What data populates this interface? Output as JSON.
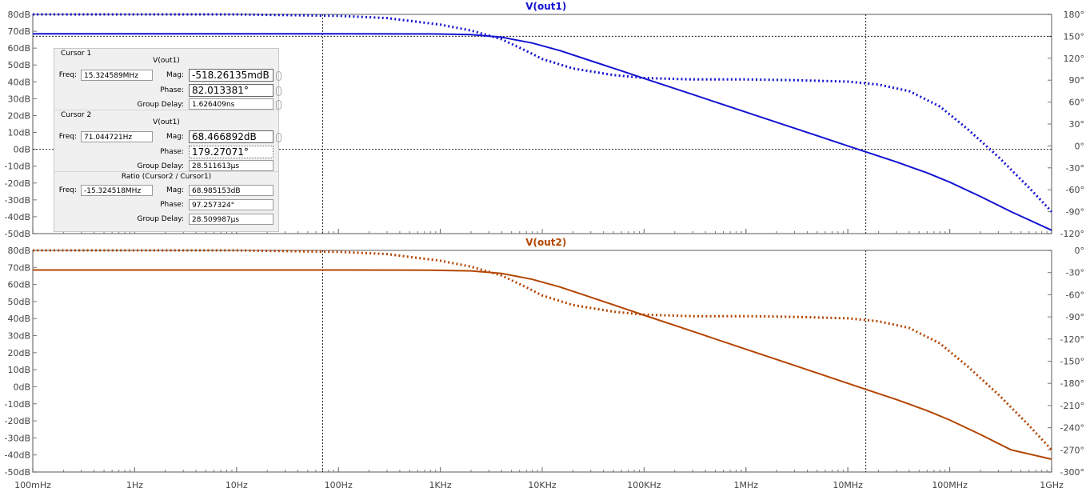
{
  "chart_data": [
    {
      "type": "line",
      "title": "V(out1)",
      "x_scale": "log",
      "x_ticks": [
        "100mHz",
        "1Hz",
        "10Hz",
        "100Hz",
        "1KHz",
        "10KHz",
        "100KHz",
        "1MHz",
        "10MHz",
        "100MHz",
        "1GHz"
      ],
      "xlim": [
        0.1,
        1000000000
      ],
      "y_left_ticks": [
        "80dB",
        "70dB",
        "60dB",
        "50dB",
        "40dB",
        "30dB",
        "20dB",
        "10dB",
        "0dB",
        "-10dB",
        "-20dB",
        "-30dB",
        "-40dB",
        "-50dB"
      ],
      "ylim_left": [
        -50,
        80
      ],
      "y_right_ticks": [
        "180°",
        "150°",
        "120°",
        "90°",
        "60°",
        "30°",
        "0°",
        "-30°",
        "-60°",
        "-90°",
        "-120°"
      ],
      "ylim_right": [
        -120,
        180
      ],
      "color": "#1414d2",
      "series": [
        {
          "style": "solid",
          "axis": "left",
          "x": [
            0.1,
            100,
            800,
            2000,
            4000,
            8000,
            15000,
            30000,
            60000,
            100000,
            300000,
            1000000,
            3000000,
            10000000,
            15000000,
            30000000,
            60000000,
            100000000,
            200000000,
            400000000,
            1000000000
          ],
          "y": [
            68.5,
            68.5,
            68.4,
            68.0,
            66.5,
            63.0,
            58.5,
            52.5,
            46.5,
            42.0,
            32.5,
            22.0,
            12.5,
            2.0,
            -1.5,
            -7.5,
            -14.0,
            -19.5,
            -28.0,
            -37.0,
            -48.0
          ]
        },
        {
          "style": "dotted",
          "axis": "right",
          "x": [
            0.1,
            10,
            100,
            300,
            1000,
            2000,
            4000,
            7000,
            10000,
            20000,
            50000,
            100000,
            300000,
            1000000,
            3000000,
            10000000,
            20000000,
            40000000,
            80000000,
            150000000,
            300000000,
            600000000,
            1000000000
          ],
          "y": [
            180,
            180,
            178,
            175,
            166,
            158,
            146,
            130,
            119,
            106,
            97,
            93,
            91,
            91,
            90,
            88,
            84,
            75,
            54,
            23,
            -15,
            -57,
            -90
          ]
        }
      ]
    },
    {
      "type": "line",
      "title": "V(out2)",
      "x_scale": "log",
      "x_ticks": [
        "100mHz",
        "1Hz",
        "10Hz",
        "100Hz",
        "1KHz",
        "10KHz",
        "100KHz",
        "1MHz",
        "10MHz",
        "100MHz",
        "1GHz"
      ],
      "xlim": [
        0.1,
        1000000000
      ],
      "y_left_ticks": [
        "80dB",
        "70dB",
        "60dB",
        "50dB",
        "40dB",
        "30dB",
        "20dB",
        "10dB",
        "0dB",
        "-10dB",
        "-20dB",
        "-30dB",
        "-40dB",
        "-50dB"
      ],
      "ylim_left": [
        -50,
        80
      ],
      "y_right_ticks": [
        "0°",
        "-30°",
        "-60°",
        "-90°",
        "-120°",
        "-150°",
        "-180°",
        "-210°",
        "-240°",
        "-270°",
        "-300°"
      ],
      "ylim_right": [
        -300,
        0
      ],
      "color": "#b34500",
      "series": [
        {
          "style": "solid",
          "axis": "left",
          "x": [
            0.1,
            100,
            800,
            2000,
            4000,
            8000,
            15000,
            30000,
            60000,
            100000,
            300000,
            1000000,
            3000000,
            10000000,
            15000000,
            30000000,
            60000000,
            100000000,
            200000000,
            400000000,
            1000000000
          ],
          "y": [
            68.5,
            68.5,
            68.4,
            68.0,
            66.5,
            63.0,
            58.5,
            52.5,
            46.5,
            42.0,
            32.5,
            22.0,
            12.5,
            2.0,
            -1.5,
            -7.5,
            -14.0,
            -19.5,
            -28.0,
            -37.0,
            -42.5
          ]
        },
        {
          "style": "dotted",
          "axis": "right",
          "x": [
            0.1,
            10,
            100,
            300,
            1000,
            2000,
            4000,
            7000,
            10000,
            20000,
            50000,
            100000,
            300000,
            1000000,
            3000000,
            10000000,
            20000000,
            40000000,
            80000000,
            150000000,
            300000000,
            600000000,
            1000000000
          ],
          "y": [
            0,
            0,
            -2,
            -5,
            -14,
            -22,
            -34,
            -50,
            -61,
            -74,
            -83,
            -87,
            -89,
            -89,
            -90,
            -92,
            -96,
            -105,
            -126,
            -157,
            -195,
            -237,
            -270
          ]
        }
      ]
    }
  ],
  "cursors": {
    "x_freqs": [
      70,
      15000000
    ],
    "y_left_db": 0,
    "y_right_deg": 150
  },
  "cursor_panel": {
    "cursor1": {
      "title": "Cursor 1",
      "trace": "V(out1)",
      "freq_label": "Freq:",
      "freq": "15.324589MHz",
      "mag_label": "Mag:",
      "mag": "-518.26135mdB",
      "phase_label": "Phase:",
      "phase": "82.013381°",
      "gd_label": "Group Delay:",
      "group_delay": "1.626409ns"
    },
    "cursor2": {
      "title": "Cursor 2",
      "trace": "V(out1)",
      "freq_label": "Freq:",
      "freq": "71.044721Hz",
      "mag_label": "Mag:",
      "mag": "68.466892dB",
      "phase_label": "Phase:",
      "phase": "179.27071°",
      "gd_label": "Group Delay:",
      "group_delay": "28.511613µs"
    },
    "ratio": {
      "title": "Ratio (Cursor2 / Cursor1)",
      "freq_label": "Freq:",
      "freq": "-15.324518MHz",
      "mag_label": "Mag:",
      "mag": "68.985153dB",
      "phase_label": "Phase:",
      "phase": "97.257324°",
      "gd_label": "Group Delay:",
      "group_delay": "28.509987µs"
    }
  }
}
